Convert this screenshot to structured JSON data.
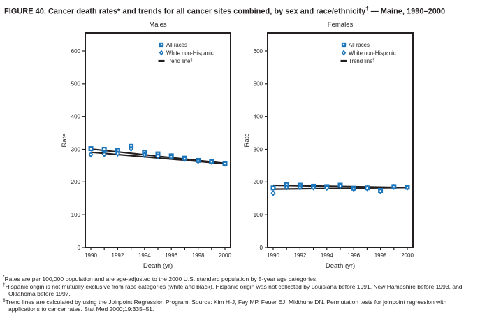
{
  "title": {
    "text": "FIGURE 40. Cancer death rates* and trends for all cancer sites combined, by sex and race/ethnicity",
    "sup": "†",
    "suffix": " — Maine, 1990–2000"
  },
  "colors": {
    "marker_blue": "#1b75bb",
    "line_black": "#231f20",
    "text": "#231f20"
  },
  "chart_data": [
    {
      "type": "line",
      "title": "Males",
      "xlabel": "Death (yr)",
      "ylabel": "Rate",
      "ylim": [
        0,
        600
      ],
      "yticks": [
        0,
        100,
        200,
        300,
        400,
        500,
        600
      ],
      "x": [
        1990,
        1991,
        1992,
        1993,
        1994,
        1995,
        1996,
        1997,
        1998,
        1999,
        2000
      ],
      "xtick_labels": [
        "1990",
        "1992",
        "1994",
        "1996",
        "1998",
        "2000"
      ],
      "grid": false,
      "legend_position": "top-right-inside",
      "legend": [
        {
          "marker": "square",
          "label": "All races"
        },
        {
          "marker": "diamond",
          "label": "White non-Hispanic"
        },
        {
          "marker": "dash",
          "label": "Trend line",
          "sup": "§"
        }
      ],
      "series": [
        {
          "name": "All races",
          "marker": "square",
          "values": [
            302,
            300,
            297,
            309,
            291,
            286,
            280,
            273,
            266,
            263,
            257
          ]
        },
        {
          "name": "White non-Hispanic",
          "marker": "diamond",
          "values": [
            284,
            285,
            287,
            302,
            283,
            279,
            277,
            271,
            264,
            262,
            256
          ]
        },
        {
          "name": "Trend line (All races)",
          "type": "trend",
          "points": [
            [
              1990,
              301
            ],
            [
              2000,
              257
            ]
          ]
        },
        {
          "name": "Trend line (White non-Hispanic)",
          "type": "trend",
          "points": [
            [
              1990,
              291
            ],
            [
              2000,
              256
            ]
          ]
        }
      ]
    },
    {
      "type": "line",
      "title": "Females",
      "xlabel": "Death (yr)",
      "ylabel": "Rate",
      "ylim": [
        0,
        600
      ],
      "yticks": [
        0,
        100,
        200,
        300,
        400,
        500,
        600
      ],
      "x": [
        1990,
        1991,
        1992,
        1993,
        1994,
        1995,
        1996,
        1997,
        1998,
        1999,
        2000
      ],
      "xtick_labels": [
        "1990",
        "1992",
        "1994",
        "1996",
        "1998",
        "2000"
      ],
      "grid": false,
      "legend_position": "top-right-inside",
      "legend": [
        {
          "marker": "square",
          "label": "All races"
        },
        {
          "marker": "diamond",
          "label": "White non-Hispanic"
        },
        {
          "marker": "dash",
          "label": "Trend line",
          "sup": "§"
        }
      ],
      "series": [
        {
          "name": "All races",
          "marker": "square",
          "values": [
            182,
            192,
            190,
            187,
            186,
            190,
            181,
            182,
            174,
            186,
            184
          ]
        },
        {
          "name": "White non-Hispanic",
          "marker": "diamond",
          "values": [
            166,
            184,
            183,
            183,
            182,
            188,
            179,
            181,
            172,
            185,
            183
          ]
        },
        {
          "name": "Trend line (All races)",
          "type": "trend",
          "points": [
            [
              1990,
              190
            ],
            [
              2000,
              183
            ]
          ]
        },
        {
          "name": "Trend line (White non-Hispanic)",
          "type": "trend",
          "points": [
            [
              1990,
              178
            ],
            [
              2000,
              183
            ]
          ]
        }
      ]
    }
  ],
  "footnotes": [
    {
      "marker": "*",
      "text": "Rates are per 100,000 population and are age-adjusted to the 2000 U.S. standard population by 5-year age categories."
    },
    {
      "marker": "†",
      "text": "Hispanic origin is not mutually exclusive from race categories (white and black). Hispanic origin was not collected by Louisiana before 1991, New Hampshire before 1993, and Oklahoma before 1997."
    },
    {
      "marker": "§",
      "text": "Trend lines are calculated by using the Joinpoint Regression Program. Source: Kim H-J, Fay MP, Feuer EJ, Midthune DN. Permutation tests for joinpoint regression with applications to cancer rates. Stat Med 2000;19:335–51."
    }
  ]
}
